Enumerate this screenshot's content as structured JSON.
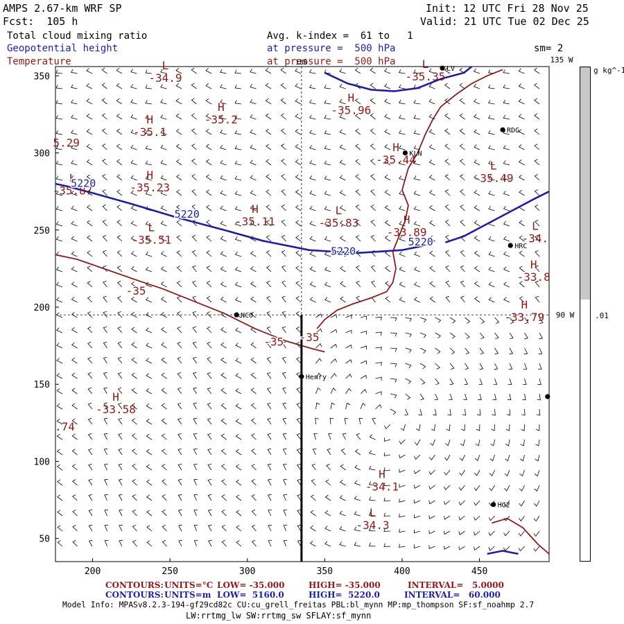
{
  "header": {
    "model": "AMPS 2.67-km WRF SP",
    "forecast": "Fcst:  105 h",
    "init": "Init: 12 UTC Fri 28 Nov 25",
    "valid": "Valid: 21 UTC Tue 02 Dec 25",
    "field1": "Total cloud mixing ratio",
    "field2": "Geopotential height",
    "field3": "Temperature",
    "avg": "Avg. k-index =  61 to   1",
    "pressure1": "at pressure =  500 hPa",
    "pressure2": "at pressure =  500 hPa",
    "smoothing": "sm= 2"
  },
  "colors": {
    "height_contour": "#1f1f99",
    "temp_contour": "#8b1a1a",
    "colorbar_fill": "#c8c8c8"
  },
  "chart_data": {
    "type": "contour-map",
    "xlim": [
      176,
      495
    ],
    "ylim": [
      35,
      356
    ],
    "x_ticks": [
      200,
      250,
      300,
      350,
      400,
      450
    ],
    "y_ticks": [
      50,
      100,
      150,
      200,
      250,
      300,
      350
    ],
    "longitude_labels": {
      "top": "135 W",
      "right": "90 W",
      "top_mark": "180"
    },
    "crosshair": {
      "x": 335,
      "y": 195
    },
    "cross_section_line": {
      "x": 335,
      "y_from": 35,
      "y_to": 195
    },
    "stations": [
      {
        "name": "NCO",
        "x": 293,
        "y": 195
      },
      {
        "name": "Henry",
        "x": 335,
        "y": 155
      },
      {
        "name": "KLN",
        "x": 402,
        "y": 300
      },
      {
        "name": "RDG",
        "x": 465,
        "y": 315
      },
      {
        "name": "HRC",
        "x": 470,
        "y": 240
      },
      {
        "name": "HG2",
        "x": 459,
        "y": 72
      },
      {
        "name": "LV",
        "x": 426,
        "y": 355
      },
      {
        "name": "",
        "x": 494,
        "y": 142
      }
    ],
    "temperature_labels": [
      {
        "kind": "L",
        "value": "-34.9",
        "x": 247,
        "y": 347
      },
      {
        "kind": "H",
        "value": "-35.2",
        "x": 283,
        "y": 320
      },
      {
        "kind": "H",
        "value": "-35.1",
        "x": 237,
        "y": 312
      },
      {
        "kind": "H",
        "value": "-35.96",
        "x": 367,
        "y": 326
      },
      {
        "kind": "L",
        "value": "-35.35",
        "x": 415,
        "y": 348
      },
      {
        "kind": "H",
        "value": "-35.44",
        "x": 396,
        "y": 294
      },
      {
        "kind": "L",
        "value": "-35.87",
        "x": 187,
        "y": 274
      },
      {
        "kind": "H",
        "value": "-35.23",
        "x": 237,
        "y": 276
      },
      {
        "kind": "H",
        "value": "-35.11",
        "x": 305,
        "y": 254
      },
      {
        "kind": "L",
        "value": "-35.83",
        "x": 359,
        "y": 253
      },
      {
        "kind": "H",
        "value": "-33.89",
        "x": 403,
        "y": 247
      },
      {
        "kind": "L",
        "value": "-35.49",
        "x": 459,
        "y": 282
      },
      {
        "kind": "L",
        "value": "-35.51",
        "x": 238,
        "y": 242
      },
      {
        "kind": "L",
        "value": "-34.",
        "x": 486,
        "y": 243
      },
      {
        "kind": "H",
        "value": "-33.8",
        "x": 485,
        "y": 218
      },
      {
        "kind": "H",
        "value": "-33.79",
        "x": 479,
        "y": 192
      },
      {
        "kind": "H",
        "value": "-33.58",
        "x": 215,
        "y": 132
      },
      {
        "kind": "H",
        "value": "-34.1",
        "x": 387,
        "y": 82
      },
      {
        "kind": "L",
        "value": "-34.3",
        "x": 381,
        "y": 57
      }
    ],
    "edge_labels": [
      {
        "text": "5.29",
        "x": 183,
        "y": 304
      },
      {
        "text": ".74",
        "x": 182,
        "y": 120
      }
    ],
    "temperature_contour_labels": [
      {
        "value": "-35",
        "x": 228,
        "y": 208
      },
      {
        "value": "-35",
        "x": 317,
        "y": 175
      },
      {
        "value": "-35",
        "x": 340,
        "y": 178
      }
    ],
    "height_contour_labels": [
      {
        "value": "5220",
        "x": 194,
        "y": 278
      },
      {
        "value": "5220",
        "x": 261,
        "y": 258
      },
      {
        "value": "5220",
        "x": 362,
        "y": 234
      },
      {
        "value": "5220",
        "x": 412,
        "y": 240
      }
    ],
    "height_contours": [
      [
        [
          176,
          280
        ],
        [
          185,
          278
        ],
        [
          200,
          274
        ],
        [
          225,
          267
        ],
        [
          255,
          258
        ],
        [
          285,
          250
        ],
        [
          310,
          243
        ],
        [
          340,
          237
        ],
        [
          370,
          235
        ],
        [
          400,
          237
        ],
        [
          415,
          240
        ]
      ],
      [
        [
          428,
          242
        ],
        [
          440,
          246
        ],
        [
          455,
          254
        ],
        [
          470,
          262
        ],
        [
          485,
          270
        ],
        [
          495,
          275
        ]
      ],
      [
        [
          350,
          352
        ],
        [
          365,
          345
        ],
        [
          380,
          341
        ],
        [
          395,
          340
        ],
        [
          410,
          342
        ],
        [
          425,
          348
        ],
        [
          440,
          352
        ],
        [
          445,
          356
        ]
      ],
      [
        [
          455,
          40
        ],
        [
          465,
          42
        ],
        [
          475,
          40
        ]
      ]
    ],
    "temperature_contours": [
      [
        [
          176,
          234
        ],
        [
          190,
          231
        ],
        [
          210,
          224
        ],
        [
          230,
          217
        ],
        [
          245,
          212
        ],
        [
          265,
          204
        ],
        [
          285,
          196
        ],
        [
          305,
          186
        ],
        [
          325,
          178
        ],
        [
          342,
          173
        ],
        [
          350,
          171
        ]
      ],
      [
        [
          345,
          186
        ],
        [
          350,
          192
        ],
        [
          358,
          198
        ],
        [
          368,
          202
        ],
        [
          380,
          206
        ],
        [
          390,
          210
        ],
        [
          394,
          216
        ],
        [
          396,
          225
        ],
        [
          394,
          236
        ],
        [
          398,
          246
        ],
        [
          402,
          256
        ],
        [
          404,
          266
        ],
        [
          400,
          276
        ],
        [
          404,
          290
        ],
        [
          410,
          300
        ],
        [
          415,
          312
        ],
        [
          420,
          322
        ],
        [
          425,
          330
        ],
        [
          435,
          338
        ],
        [
          445,
          345
        ],
        [
          455,
          350
        ],
        [
          465,
          354
        ]
      ],
      [
        [
          458,
          60
        ],
        [
          468,
          63
        ],
        [
          478,
          57
        ],
        [
          488,
          46
        ],
        [
          495,
          40
        ]
      ]
    ],
    "colorbar": {
      "unit": "g kg^-1",
      "tick_label": ".01",
      "fill_fraction": 0.47
    },
    "footer": {
      "temp_line": {
        "contours": "CONTOURS:",
        "units": "UNITS=°C",
        "low": "LOW= -35.000",
        "high": "HIGH= -35.000",
        "interval": "INTERVAL=   5.0000"
      },
      "height_line": {
        "contours": "CONTOURS:",
        "units": "UNITS=m",
        "low": "LOW=  5160.0",
        "high": "HIGH=  5220.0",
        "interval": "INTERVAL=   60.000"
      }
    },
    "model_info": "Model Info: MPASv8.2.3-194-gf29cd82c CU:cu_grell_freitas PBL:bl_mynn MP:mp_thompson SF:sf_noahmp 2.7",
    "model_info2": "LW:rrtmg_lw SW:rrtmg_sw SFLAY:sf_mynn"
  }
}
